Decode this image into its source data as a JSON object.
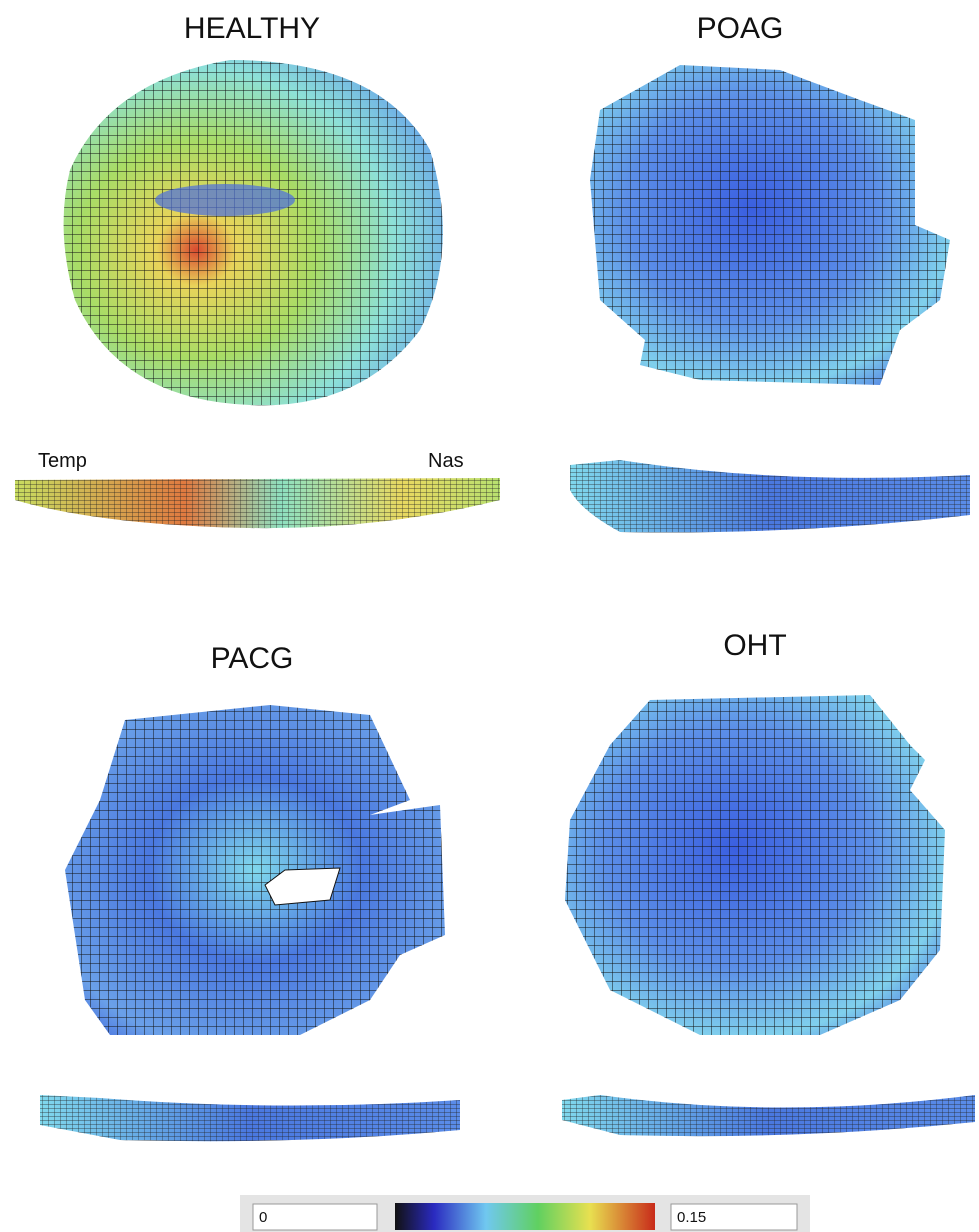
{
  "panels": [
    {
      "title": "HEALTHY"
    },
    {
      "title": "POAG"
    },
    {
      "title": "PACG"
    },
    {
      "title": "OHT"
    }
  ],
  "orientation": {
    "left": "Temp",
    "right": "Nas"
  },
  "colorbar": {
    "min": 0,
    "max": 0.15
  }
}
